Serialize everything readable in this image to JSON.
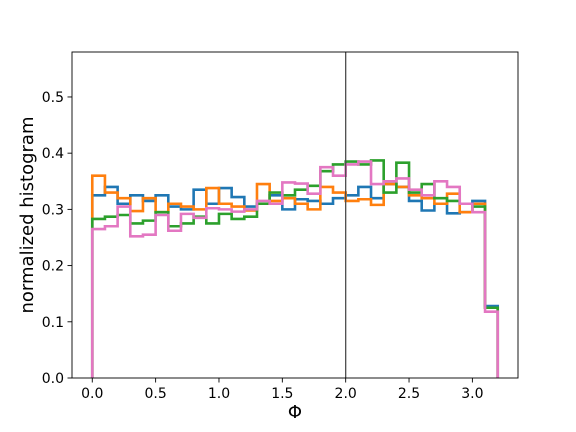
{
  "chart_data": {
    "type": "line",
    "drawstyle": "step-histogram",
    "title": "",
    "xlabel": "Φ",
    "ylabel": "normalized histogram",
    "xlim": [
      -0.16,
      3.36
    ],
    "ylim": [
      0.0,
      0.58
    ],
    "x_ticks": [
      0.0,
      0.5,
      1.0,
      1.5,
      2.0,
      2.5,
      3.0
    ],
    "x_tick_labels": [
      "0.0",
      "0.5",
      "1.0",
      "1.5",
      "2.0",
      "2.5",
      "3.0"
    ],
    "y_ticks": [
      0.0,
      0.1,
      0.2,
      0.3,
      0.4,
      0.5
    ],
    "y_tick_labels": [
      "0.0",
      "0.1",
      "0.2",
      "0.3",
      "0.4",
      "0.5"
    ],
    "grid": false,
    "reference_line": {
      "x": 2.0,
      "color": "#4d4d4d"
    },
    "bin_edges": [
      0.0,
      0.1,
      0.2,
      0.3,
      0.4,
      0.5,
      0.6,
      0.7,
      0.8,
      0.9,
      1.0,
      1.1,
      1.2,
      1.3,
      1.4,
      1.5,
      1.6,
      1.7,
      1.8,
      1.9,
      2.0,
      2.1,
      2.2,
      2.3,
      2.4,
      2.5,
      2.6,
      2.7,
      2.8,
      2.9,
      3.0,
      3.1,
      3.2
    ],
    "series": [
      {
        "color": "#1f77b4",
        "values": [
          0.325,
          0.34,
          0.31,
          0.325,
          0.315,
          0.325,
          0.305,
          0.3,
          0.335,
          0.31,
          0.338,
          0.322,
          0.305,
          0.31,
          0.325,
          0.3,
          0.318,
          0.315,
          0.31,
          0.32,
          0.325,
          0.34,
          0.32,
          0.345,
          0.34,
          0.315,
          0.298,
          0.31,
          0.293,
          0.295,
          0.315,
          0.128
        ]
      },
      {
        "color": "#ff7f0e",
        "values": [
          0.36,
          0.33,
          0.32,
          0.297,
          0.32,
          0.295,
          0.31,
          0.305,
          0.3,
          0.338,
          0.31,
          0.305,
          0.298,
          0.345,
          0.315,
          0.32,
          0.31,
          0.3,
          0.34,
          0.33,
          0.315,
          0.318,
          0.308,
          0.345,
          0.34,
          0.325,
          0.32,
          0.31,
          0.328,
          0.295,
          0.31,
          0.125
        ]
      },
      {
        "color": "#2ca02c",
        "values": [
          0.283,
          0.287,
          0.29,
          0.275,
          0.28,
          0.295,
          0.27,
          0.275,
          0.287,
          0.275,
          0.292,
          0.283,
          0.287,
          0.31,
          0.33,
          0.325,
          0.335,
          0.342,
          0.368,
          0.38,
          0.385,
          0.38,
          0.387,
          0.33,
          0.383,
          0.33,
          0.345,
          0.32,
          0.315,
          0.31,
          0.305,
          0.125
        ]
      },
      {
        "color": "#e377c2",
        "values": [
          0.265,
          0.27,
          0.305,
          0.252,
          0.255,
          0.29,
          0.262,
          0.292,
          0.285,
          0.302,
          0.3,
          0.296,
          0.3,
          0.315,
          0.31,
          0.348,
          0.346,
          0.328,
          0.375,
          0.36,
          0.38,
          0.385,
          0.345,
          0.35,
          0.355,
          0.335,
          0.325,
          0.35,
          0.34,
          0.31,
          0.295,
          0.118
        ]
      }
    ]
  }
}
